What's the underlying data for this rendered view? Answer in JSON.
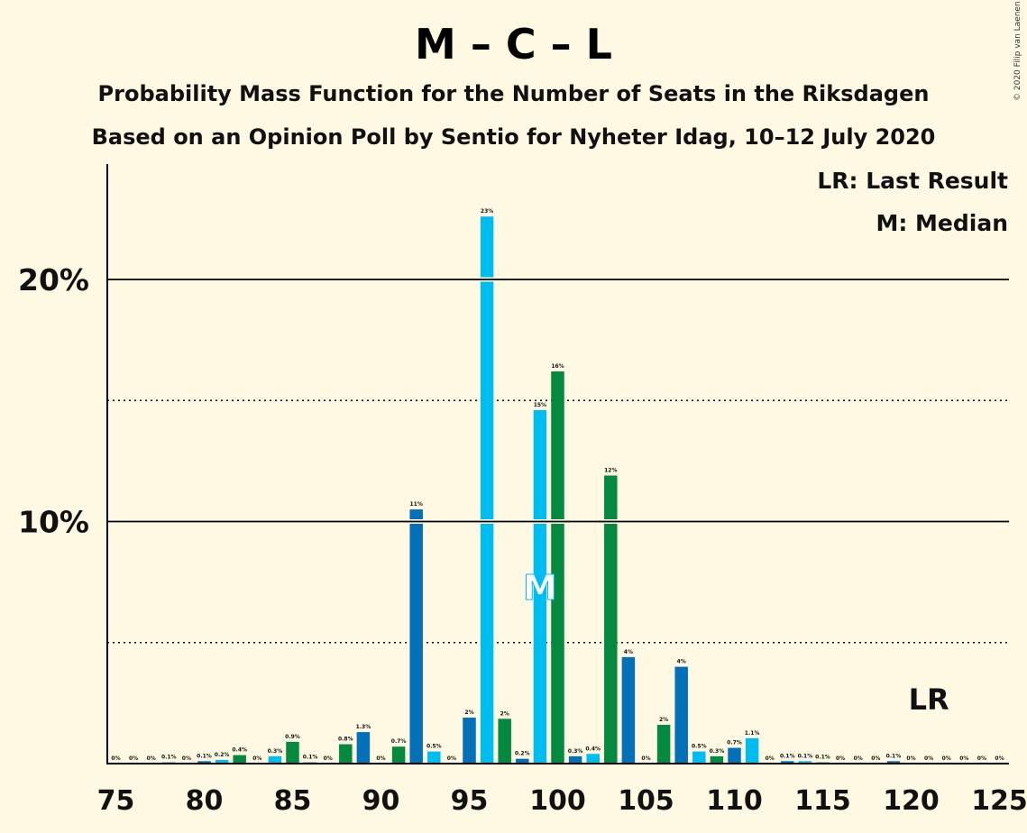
{
  "title": "M – C – L",
  "subtitle1": "Probability Mass Function for the Number of Seats in the Riksdagen",
  "subtitle2": "Based on an Opinion Poll by Sentio for Nyheter Idag, 10–12 July 2020",
  "legend": {
    "last_result": "LR: Last Result",
    "median": "M: Median"
  },
  "copyright": "© 2020 Filip van Laenen",
  "colors": {
    "background": "#fff9e3",
    "dark_blue": "#0470b8",
    "light_blue": "#00bdef",
    "green": "#05883f"
  },
  "chart_data": {
    "type": "bar",
    "xlabel": "",
    "ylabel": "",
    "xlim": [
      75,
      125
    ],
    "ylim": [
      0,
      24.5
    ],
    "x_ticks": [
      75,
      80,
      85,
      90,
      95,
      100,
      105,
      110,
      115,
      120,
      125
    ],
    "y_ticks": [
      {
        "value": 10,
        "label": "10%"
      },
      {
        "value": 20,
        "label": "20%"
      }
    ],
    "y_minor_dotted": [
      5,
      15
    ],
    "grid": true,
    "legend_position": "top-right",
    "median": {
      "x": 99,
      "label": "M"
    },
    "last_result": {
      "x": 121,
      "label": "LR"
    },
    "bars": [
      {
        "x": 75,
        "value": 0,
        "label": "0%",
        "color": "dark_blue"
      },
      {
        "x": 76,
        "value": 0,
        "label": "0%",
        "color": "light_blue"
      },
      {
        "x": 77,
        "value": 0,
        "label": "0%",
        "color": "green"
      },
      {
        "x": 78,
        "value": 0.05,
        "label": "0.1%",
        "color": "dark_blue"
      },
      {
        "x": 79,
        "value": 0,
        "label": "0%",
        "color": "light_blue"
      },
      {
        "x": 80,
        "value": 0.1,
        "label": "0.1%",
        "color": "dark_blue"
      },
      {
        "x": 81,
        "value": 0.15,
        "label": "0.2%",
        "color": "light_blue"
      },
      {
        "x": 82,
        "value": 0.35,
        "label": "0.4%",
        "color": "green"
      },
      {
        "x": 83,
        "value": 0,
        "label": "0%",
        "color": "dark_blue"
      },
      {
        "x": 84,
        "value": 0.3,
        "label": "0.3%",
        "color": "light_blue"
      },
      {
        "x": 85,
        "value": 0.9,
        "label": "0.9%",
        "color": "green"
      },
      {
        "x": 86,
        "value": 0.05,
        "label": "0.1%",
        "color": "dark_blue"
      },
      {
        "x": 87,
        "value": 0,
        "label": "0%",
        "color": "light_blue"
      },
      {
        "x": 88,
        "value": 0.8,
        "label": "0.8%",
        "color": "green"
      },
      {
        "x": 89,
        "value": 1.3,
        "label": "1.3%",
        "color": "dark_blue"
      },
      {
        "x": 90,
        "value": 0,
        "label": "0%",
        "color": "light_blue"
      },
      {
        "x": 91,
        "value": 0.7,
        "label": "0.7%",
        "color": "green"
      },
      {
        "x": 92,
        "value": 10.5,
        "label": "11%",
        "color": "dark_blue"
      },
      {
        "x": 93,
        "value": 0.5,
        "label": "0.5%",
        "color": "light_blue"
      },
      {
        "x": 94,
        "value": 0,
        "label": "0%",
        "color": "green"
      },
      {
        "x": 95,
        "value": 1.9,
        "label": "2%",
        "color": "dark_blue"
      },
      {
        "x": 96,
        "value": 22.6,
        "label": "23%",
        "color": "light_blue"
      },
      {
        "x": 97,
        "value": 1.85,
        "label": "2%",
        "color": "green"
      },
      {
        "x": 98,
        "value": 0.2,
        "label": "0.2%",
        "color": "dark_blue"
      },
      {
        "x": 99,
        "value": 14.6,
        "label": "15%",
        "color": "light_blue"
      },
      {
        "x": 100,
        "value": 16.2,
        "label": "16%",
        "color": "green"
      },
      {
        "x": 101,
        "value": 0.3,
        "label": "0.3%",
        "color": "dark_blue"
      },
      {
        "x": 102,
        "value": 0.4,
        "label": "0.4%",
        "color": "light_blue"
      },
      {
        "x": 103,
        "value": 11.9,
        "label": "12%",
        "color": "green"
      },
      {
        "x": 104,
        "value": 4.4,
        "label": "4%",
        "color": "dark_blue"
      },
      {
        "x": 105,
        "value": 0,
        "label": "0%",
        "color": "light_blue"
      },
      {
        "x": 106,
        "value": 1.6,
        "label": "2%",
        "color": "green"
      },
      {
        "x": 107,
        "value": 4.0,
        "label": "4%",
        "color": "dark_blue"
      },
      {
        "x": 108,
        "value": 0.5,
        "label": "0.5%",
        "color": "light_blue"
      },
      {
        "x": 109,
        "value": 0.3,
        "label": "0.3%",
        "color": "green"
      },
      {
        "x": 110,
        "value": 0.65,
        "label": "0.7%",
        "color": "dark_blue"
      },
      {
        "x": 111,
        "value": 1.05,
        "label": "1.1%",
        "color": "light_blue"
      },
      {
        "x": 112,
        "value": 0,
        "label": "0%",
        "color": "green"
      },
      {
        "x": 113,
        "value": 0.1,
        "label": "0.1%",
        "color": "dark_blue"
      },
      {
        "x": 114,
        "value": 0.1,
        "label": "0.1%",
        "color": "light_blue"
      },
      {
        "x": 115,
        "value": 0.05,
        "label": "0.1%",
        "color": "green"
      },
      {
        "x": 116,
        "value": 0,
        "label": "0%",
        "color": "dark_blue"
      },
      {
        "x": 117,
        "value": 0,
        "label": "0%",
        "color": "light_blue"
      },
      {
        "x": 118,
        "value": 0,
        "label": "0%",
        "color": "green"
      },
      {
        "x": 119,
        "value": 0.1,
        "label": "0.1%",
        "color": "dark_blue"
      },
      {
        "x": 120,
        "value": 0,
        "label": "0%",
        "color": "light_blue"
      },
      {
        "x": 121,
        "value": 0,
        "label": "0%",
        "color": "green"
      },
      {
        "x": 122,
        "value": 0,
        "label": "0%",
        "color": "dark_blue"
      },
      {
        "x": 123,
        "value": 0,
        "label": "0%",
        "color": "light_blue"
      },
      {
        "x": 124,
        "value": 0,
        "label": "0%",
        "color": "green"
      },
      {
        "x": 125,
        "value": 0,
        "label": "0%",
        "color": "dark_blue"
      }
    ]
  }
}
